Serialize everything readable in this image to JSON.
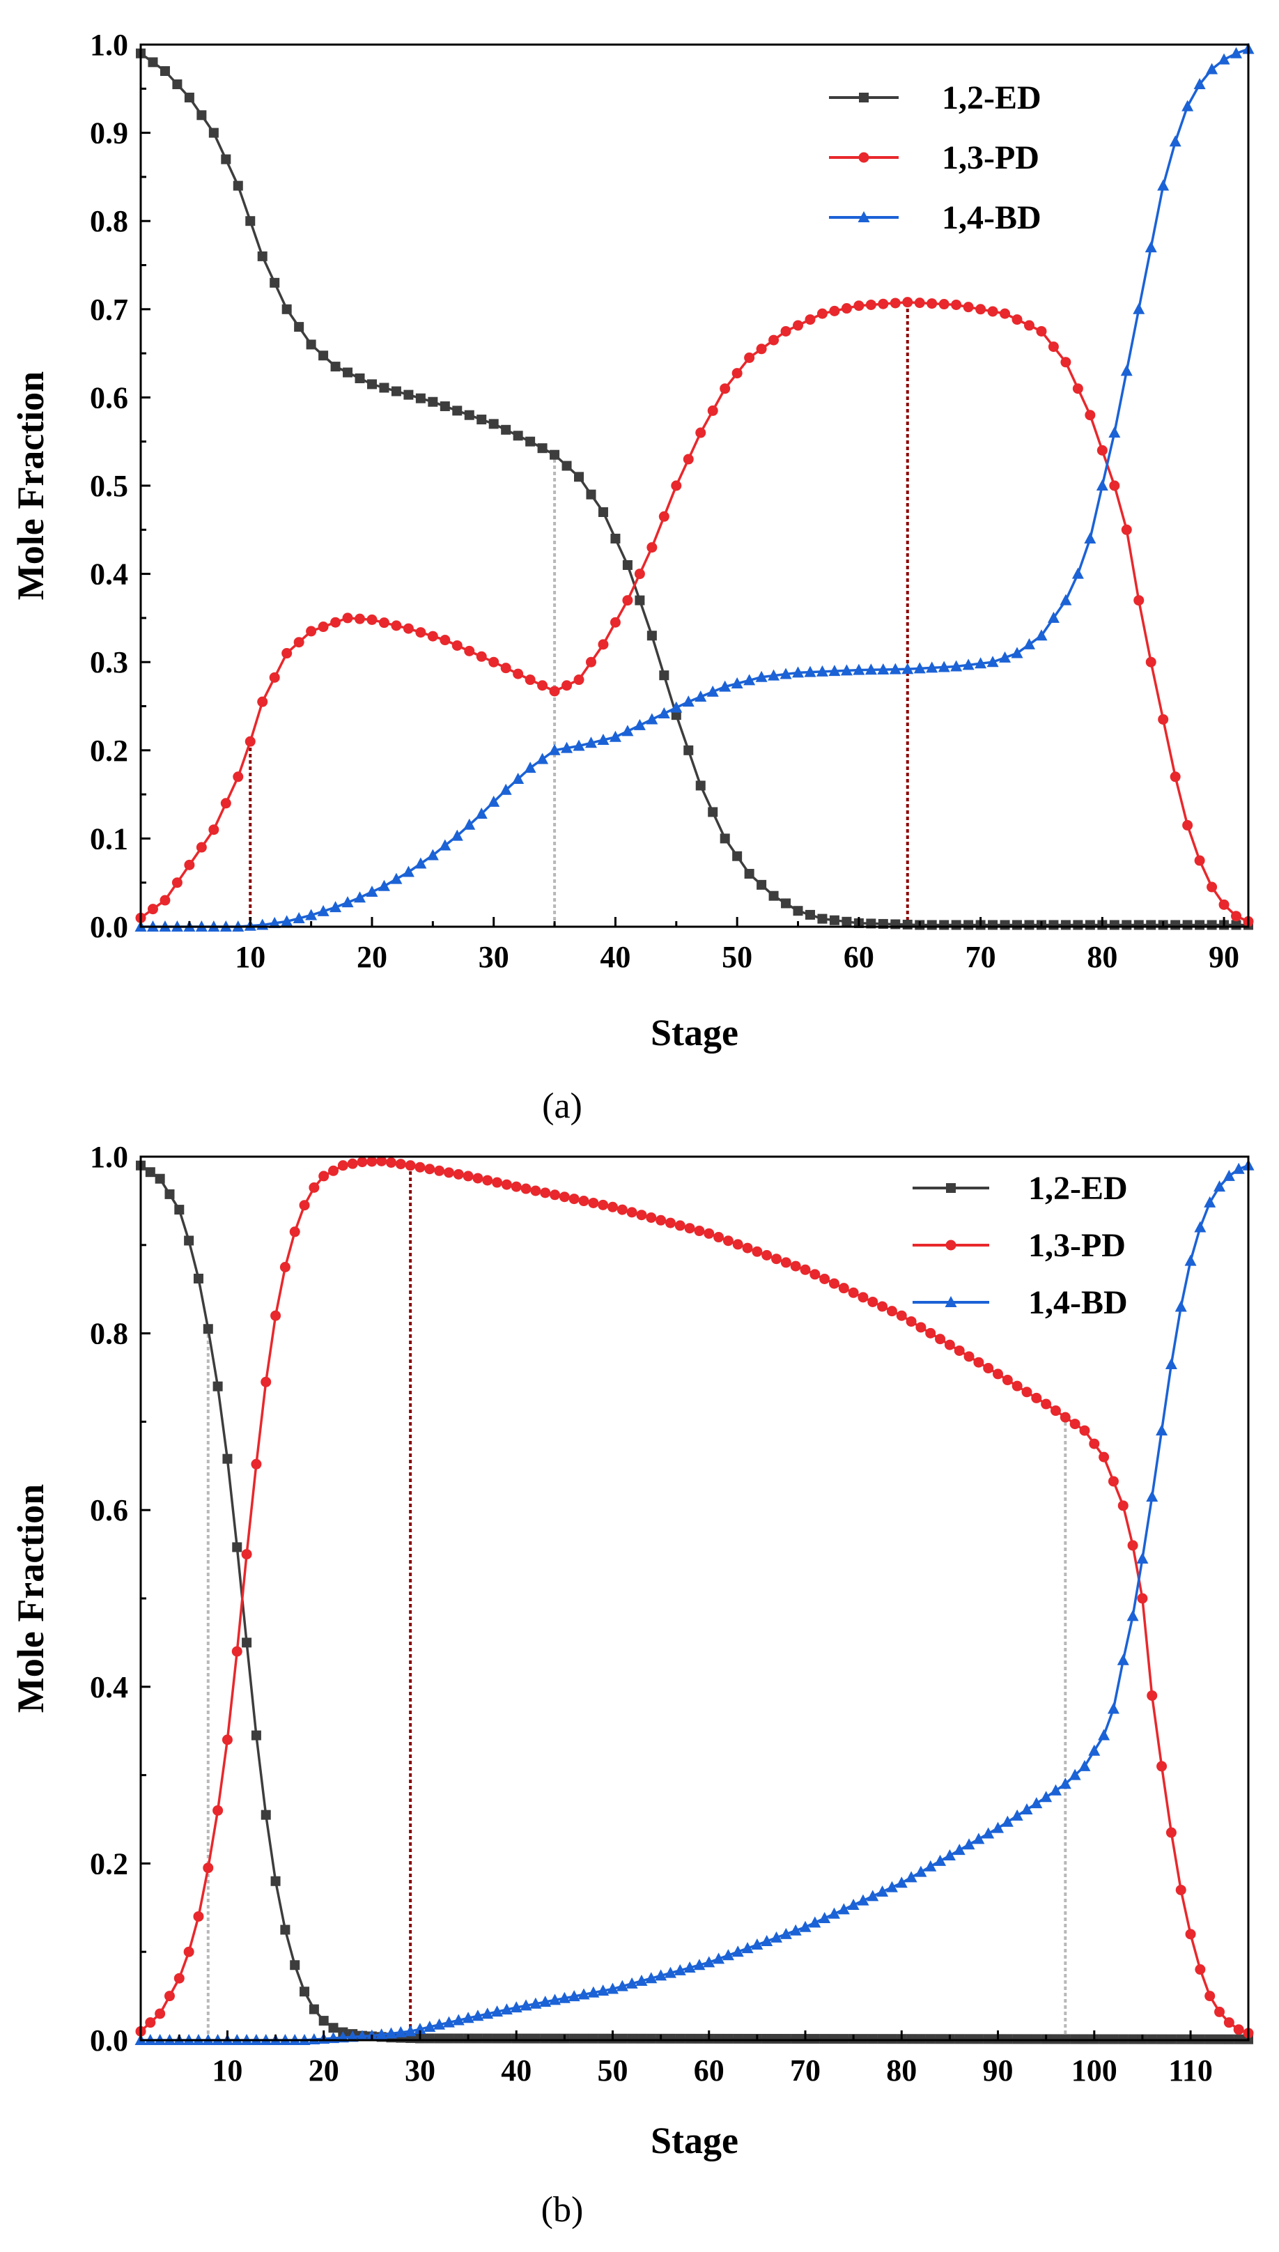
{
  "colors": {
    "ed": "#3d3d3d",
    "pd": "#e8282c",
    "bd": "#1b62d6",
    "guide_dark": "#8b0000",
    "guide_light": "#b8b8b8"
  },
  "chart_data": [
    {
      "type": "line",
      "panel_label": "(a)",
      "xlabel": "Stage",
      "ylabel": "Mole Fraction",
      "xlim": [
        1,
        92
      ],
      "ylim": [
        0,
        1.0
      ],
      "xticks": [
        10,
        20,
        30,
        40,
        50,
        60,
        70,
        80,
        90
      ],
      "xtick_labels": [
        "10",
        "20",
        "30",
        "40",
        "50",
        "60",
        "70",
        "80",
        "90"
      ],
      "yticks": [
        0,
        0.1,
        0.2,
        0.3,
        0.4,
        0.5,
        0.6,
        0.7,
        0.8,
        0.9,
        1.0
      ],
      "ytick_labels": [
        "0.0",
        "0.1",
        "0.2",
        "0.3",
        "0.4",
        "0.5",
        "0.6",
        "0.7",
        "0.8",
        "0.9",
        "1.0"
      ],
      "legend_position": "top-right",
      "stages": {
        "start": 1,
        "end": 92
      },
      "series": [
        {
          "name": "1,2-ED",
          "color_key": "ed",
          "marker": "square",
          "knots": [
            [
              1,
              0.99
            ],
            [
              3,
              0.97
            ],
            [
              5,
              0.94
            ],
            [
              7,
              0.9
            ],
            [
              9,
              0.84
            ],
            [
              11,
              0.76
            ],
            [
              13,
              0.7
            ],
            [
              15,
              0.66
            ],
            [
              17,
              0.635
            ],
            [
              20,
              0.615
            ],
            [
              25,
              0.595
            ],
            [
              30,
              0.57
            ],
            [
              33,
              0.55
            ],
            [
              35,
              0.535
            ],
            [
              37,
              0.51
            ],
            [
              39,
              0.47
            ],
            [
              41,
              0.41
            ],
            [
              43,
              0.33
            ],
            [
              45,
              0.24
            ],
            [
              47,
              0.16
            ],
            [
              49,
              0.1
            ],
            [
              51,
              0.06
            ],
            [
              53,
              0.035
            ],
            [
              55,
              0.018
            ],
            [
              57,
              0.009
            ],
            [
              60,
              0.004
            ],
            [
              65,
              0.002
            ],
            [
              92,
              0.002
            ]
          ]
        },
        {
          "name": "1,3-PD",
          "color_key": "pd",
          "marker": "circle",
          "knots": [
            [
              1,
              0.01
            ],
            [
              3,
              0.03
            ],
            [
              5,
              0.07
            ],
            [
              7,
              0.11
            ],
            [
              9,
              0.17
            ],
            [
              10,
              0.21
            ],
            [
              11,
              0.255
            ],
            [
              13,
              0.31
            ],
            [
              15,
              0.335
            ],
            [
              18,
              0.35
            ],
            [
              20,
              0.348
            ],
            [
              23,
              0.338
            ],
            [
              26,
              0.325
            ],
            [
              30,
              0.3
            ],
            [
              33,
              0.28
            ],
            [
              35,
              0.267
            ],
            [
              37,
              0.28
            ],
            [
              39,
              0.32
            ],
            [
              41,
              0.37
            ],
            [
              43,
              0.43
            ],
            [
              45,
              0.5
            ],
            [
              47,
              0.56
            ],
            [
              49,
              0.61
            ],
            [
              51,
              0.645
            ],
            [
              54,
              0.675
            ],
            [
              57,
              0.695
            ],
            [
              60,
              0.704
            ],
            [
              64,
              0.708
            ],
            [
              68,
              0.705
            ],
            [
              72,
              0.695
            ],
            [
              75,
              0.675
            ],
            [
              77,
              0.64
            ],
            [
              79,
              0.58
            ],
            [
              81,
              0.5
            ],
            [
              82,
              0.45
            ],
            [
              83,
              0.37
            ],
            [
              84,
              0.3
            ],
            [
              85,
              0.235
            ],
            [
              86,
              0.17
            ],
            [
              87,
              0.115
            ],
            [
              88,
              0.075
            ],
            [
              89,
              0.045
            ],
            [
              90,
              0.025
            ],
            [
              91,
              0.012
            ],
            [
              92,
              0.006
            ]
          ]
        },
        {
          "name": "1,4-BD",
          "color_key": "bd",
          "marker": "triangle",
          "knots": [
            [
              1,
              0.0
            ],
            [
              9,
              0.0
            ],
            [
              11,
              0.002
            ],
            [
              13,
              0.006
            ],
            [
              15,
              0.013
            ],
            [
              17,
              0.022
            ],
            [
              19,
              0.033
            ],
            [
              21,
              0.046
            ],
            [
              23,
              0.062
            ],
            [
              25,
              0.081
            ],
            [
              27,
              0.103
            ],
            [
              29,
              0.128
            ],
            [
              31,
              0.155
            ],
            [
              33,
              0.18
            ],
            [
              35,
              0.2
            ],
            [
              37,
              0.205
            ],
            [
              40,
              0.215
            ],
            [
              43,
              0.235
            ],
            [
              46,
              0.255
            ],
            [
              49,
              0.272
            ],
            [
              52,
              0.283
            ],
            [
              55,
              0.288
            ],
            [
              60,
              0.291
            ],
            [
              64,
              0.292
            ],
            [
              68,
              0.295
            ],
            [
              71,
              0.3
            ],
            [
              73,
              0.31
            ],
            [
              75,
              0.33
            ],
            [
              77,
              0.37
            ],
            [
              78,
              0.4
            ],
            [
              79,
              0.44
            ],
            [
              80,
              0.5
            ],
            [
              81,
              0.56
            ],
            [
              82,
              0.63
            ],
            [
              83,
              0.7
            ],
            [
              84,
              0.77
            ],
            [
              85,
              0.84
            ],
            [
              86,
              0.89
            ],
            [
              87,
              0.93
            ],
            [
              88,
              0.955
            ],
            [
              89,
              0.972
            ],
            [
              90,
              0.983
            ],
            [
              91,
              0.99
            ],
            [
              92,
              0.995
            ]
          ]
        }
      ],
      "guides": [
        {
          "x": 10,
          "y_to": 0.21,
          "style": "dark"
        },
        {
          "x": 35,
          "y_to": 0.535,
          "style": "light"
        },
        {
          "x": 64,
          "y_to": 0.708,
          "style": "dark"
        }
      ]
    },
    {
      "type": "line",
      "panel_label": "(b)",
      "xlabel": "Stage",
      "ylabel": "Mole Fraction",
      "xlim": [
        1,
        116
      ],
      "ylim": [
        0,
        1.0
      ],
      "xticks": [
        10,
        20,
        30,
        40,
        50,
        60,
        70,
        80,
        90,
        100,
        110
      ],
      "xtick_labels": [
        "10",
        "20",
        "30",
        "40",
        "50",
        "60",
        "70",
        "80",
        "90",
        "100",
        "110"
      ],
      "yticks": [
        0,
        0.2,
        0.4,
        0.6,
        0.8,
        1.0
      ],
      "ytick_labels": [
        "0.0",
        "0.2",
        "0.4",
        "0.6",
        "0.8",
        "1.0"
      ],
      "legend_position": "top-right",
      "stages": {
        "start": 1,
        "end": 116
      },
      "series": [
        {
          "name": "1,2-ED",
          "color_key": "ed",
          "marker": "square",
          "knots": [
            [
              1,
              0.99
            ],
            [
              3,
              0.975
            ],
            [
              5,
              0.94
            ],
            [
              6,
              0.905
            ],
            [
              7,
              0.862
            ],
            [
              8,
              0.805
            ],
            [
              9,
              0.74
            ],
            [
              10,
              0.658
            ],
            [
              11,
              0.558
            ],
            [
              12,
              0.45
            ],
            [
              13,
              0.345
            ],
            [
              14,
              0.255
            ],
            [
              15,
              0.18
            ],
            [
              16,
              0.125
            ],
            [
              17,
              0.085
            ],
            [
              18,
              0.055
            ],
            [
              19,
              0.035
            ],
            [
              20,
              0.022
            ],
            [
              21,
              0.014
            ],
            [
              22,
              0.009
            ],
            [
              24,
              0.005
            ],
            [
              27,
              0.003
            ],
            [
              30,
              0.002
            ],
            [
              116,
              0.001
            ]
          ]
        },
        {
          "name": "1,3-PD",
          "color_key": "pd",
          "marker": "circle",
          "knots": [
            [
              1,
              0.01
            ],
            [
              3,
              0.03
            ],
            [
              4,
              0.05
            ],
            [
              5,
              0.07
            ],
            [
              6,
              0.1
            ],
            [
              7,
              0.14
            ],
            [
              8,
              0.195
            ],
            [
              9,
              0.26
            ],
            [
              10,
              0.34
            ],
            [
              11,
              0.44
            ],
            [
              12,
              0.55
            ],
            [
              13,
              0.652
            ],
            [
              14,
              0.745
            ],
            [
              15,
              0.82
            ],
            [
              16,
              0.875
            ],
            [
              17,
              0.915
            ],
            [
              18,
              0.945
            ],
            [
              19,
              0.965
            ],
            [
              20,
              0.978
            ],
            [
              22,
              0.99
            ],
            [
              24,
              0.994
            ],
            [
              26,
              0.995
            ],
            [
              29,
              0.99
            ],
            [
              35,
              0.978
            ],
            [
              40,
              0.966
            ],
            [
              50,
              0.943
            ],
            [
              60,
              0.913
            ],
            [
              70,
              0.872
            ],
            [
              80,
              0.82
            ],
            [
              90,
              0.754
            ],
            [
              95,
              0.72
            ],
            [
              97,
              0.705
            ],
            [
              99,
              0.69
            ],
            [
              101,
              0.66
            ],
            [
              103,
              0.605
            ],
            [
              104,
              0.56
            ],
            [
              105,
              0.5
            ],
            [
              106,
              0.39
            ],
            [
              107,
              0.31
            ],
            [
              108,
              0.235
            ],
            [
              109,
              0.17
            ],
            [
              110,
              0.12
            ],
            [
              111,
              0.08
            ],
            [
              112,
              0.05
            ],
            [
              113,
              0.032
            ],
            [
              114,
              0.02
            ],
            [
              115,
              0.012
            ],
            [
              116,
              0.008
            ]
          ]
        },
        {
          "name": "1,4-BD",
          "color_key": "bd",
          "marker": "triangle",
          "knots": [
            [
              1,
              0.0
            ],
            [
              18,
              0.0
            ],
            [
              22,
              0.003
            ],
            [
              25,
              0.005
            ],
            [
              29,
              0.01
            ],
            [
              35,
              0.025
            ],
            [
              40,
              0.037
            ],
            [
              50,
              0.058
            ],
            [
              60,
              0.088
            ],
            [
              70,
              0.128
            ],
            [
              80,
              0.178
            ],
            [
              90,
              0.24
            ],
            [
              95,
              0.275
            ],
            [
              97,
              0.29
            ],
            [
              99,
              0.31
            ],
            [
              101,
              0.345
            ],
            [
              102,
              0.375
            ],
            [
              103,
              0.43
            ],
            [
              104,
              0.48
            ],
            [
              105,
              0.545
            ],
            [
              106,
              0.615
            ],
            [
              107,
              0.69
            ],
            [
              108,
              0.765
            ],
            [
              109,
              0.83
            ],
            [
              110,
              0.882
            ],
            [
              111,
              0.92
            ],
            [
              112,
              0.948
            ],
            [
              113,
              0.966
            ],
            [
              114,
              0.978
            ],
            [
              115,
              0.986
            ],
            [
              116,
              0.99
            ]
          ]
        }
      ],
      "guides": [
        {
          "x": 8,
          "y_to": 0.805,
          "style": "light"
        },
        {
          "x": 29,
          "y_to": 0.99,
          "style": "dark"
        },
        {
          "x": 97,
          "y_to": 0.705,
          "style": "light"
        }
      ]
    }
  ]
}
